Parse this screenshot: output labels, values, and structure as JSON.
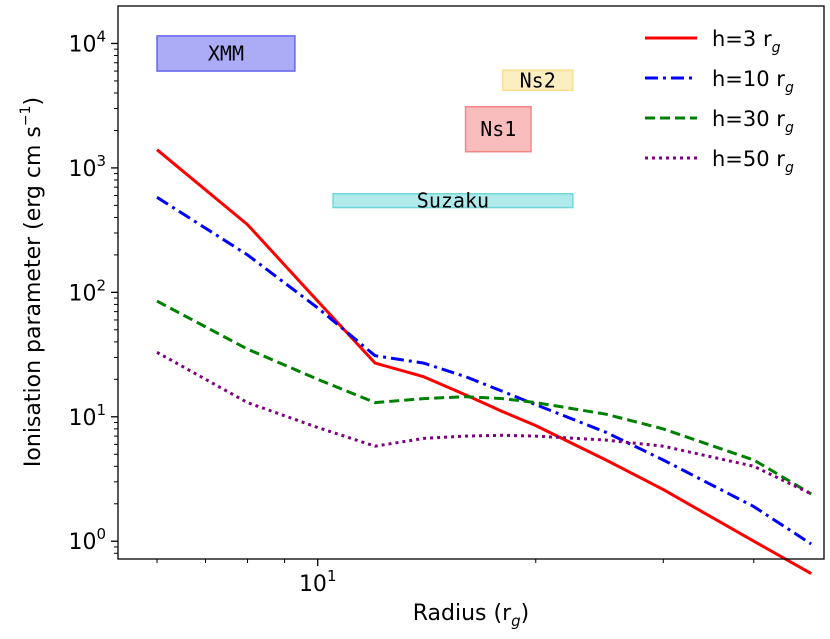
{
  "chart_data": {
    "type": "line",
    "xlabel_main": "Radius (r",
    "xlabel_sub": "g",
    "xlabel_tail": ")",
    "ylabel_main": "Ionisation parameter (erg cm s",
    "ylabel_sup": "−1",
    "ylabel_tail": ")",
    "xscale": "log",
    "yscale": "log",
    "xlim": [
      5.3,
      50
    ],
    "ylim": [
      0.72,
      20000
    ],
    "grid": false,
    "legend_placement": "top-right",
    "x_ticks": [
      {
        "value": 10,
        "base": "10",
        "exp": "1"
      }
    ],
    "y_ticks": [
      {
        "value": 1,
        "base": "10",
        "exp": "0"
      },
      {
        "value": 10,
        "base": "10",
        "exp": "1"
      },
      {
        "value": 100,
        "base": "10",
        "exp": "2"
      },
      {
        "value": 1000,
        "base": "10",
        "exp": "3"
      },
      {
        "value": 10000,
        "base": "10",
        "exp": "4"
      }
    ],
    "series": [
      {
        "name_main": "h=3 r",
        "name_sub": "g",
        "color": "#ff0000",
        "dash": "solid",
        "x": [
          6,
          8,
          10,
          12,
          14,
          16,
          18,
          20,
          25,
          30,
          40,
          48
        ],
        "y": [
          1400,
          350,
          85,
          27,
          21,
          15,
          11,
          8.5,
          4.5,
          2.6,
          1.0,
          0.55
        ]
      },
      {
        "name_main": "h=10 r",
        "name_sub": "g",
        "color": "#0000ff",
        "dash": "dashdot",
        "x": [
          6,
          8,
          10,
          12,
          14,
          16,
          18,
          20,
          25,
          30,
          40,
          48
        ],
        "y": [
          580,
          200,
          75,
          31,
          27,
          21,
          16,
          12.5,
          7.5,
          4.5,
          1.9,
          0.95
        ]
      },
      {
        "name_main": "h=30 r",
        "name_sub": "g",
        "color": "#008000",
        "dash": "dashed",
        "x": [
          6,
          8,
          10,
          12,
          14,
          16,
          18,
          20,
          25,
          30,
          40,
          48
        ],
        "y": [
          85,
          35,
          20,
          13,
          14,
          14.5,
          14,
          13,
          10.5,
          8,
          4.5,
          2.4
        ]
      },
      {
        "name_main": "h=50 r",
        "name_sub": "g",
        "color": "#800080",
        "dash": "dotted",
        "x": [
          6,
          8,
          10,
          12,
          14,
          16,
          18,
          20,
          25,
          30,
          40,
          48
        ],
        "y": [
          33,
          13,
          8.2,
          5.8,
          6.7,
          7.0,
          7.1,
          7.0,
          6.5,
          5.8,
          4.0,
          2.4
        ]
      }
    ],
    "bands": [
      {
        "label": "XMM",
        "color": "#6666ee",
        "xmin": 6.0,
        "xmax": 9.3,
        "ymin": 6000,
        "ymax": 11500
      },
      {
        "label": "Ns2",
        "color": "#f8e08e",
        "xmin": 18.0,
        "xmax": 22.5,
        "ymin": 4200,
        "ymax": 6100
      },
      {
        "label": "Ns1",
        "color": "#f48686",
        "xmin": 16.0,
        "xmax": 19.7,
        "ymin": 1350,
        "ymax": 3100
      },
      {
        "label": "Suzaku",
        "color": "#70d8d8",
        "xmin": 10.5,
        "xmax": 22.5,
        "ymin": 480,
        "ymax": 620
      }
    ]
  }
}
